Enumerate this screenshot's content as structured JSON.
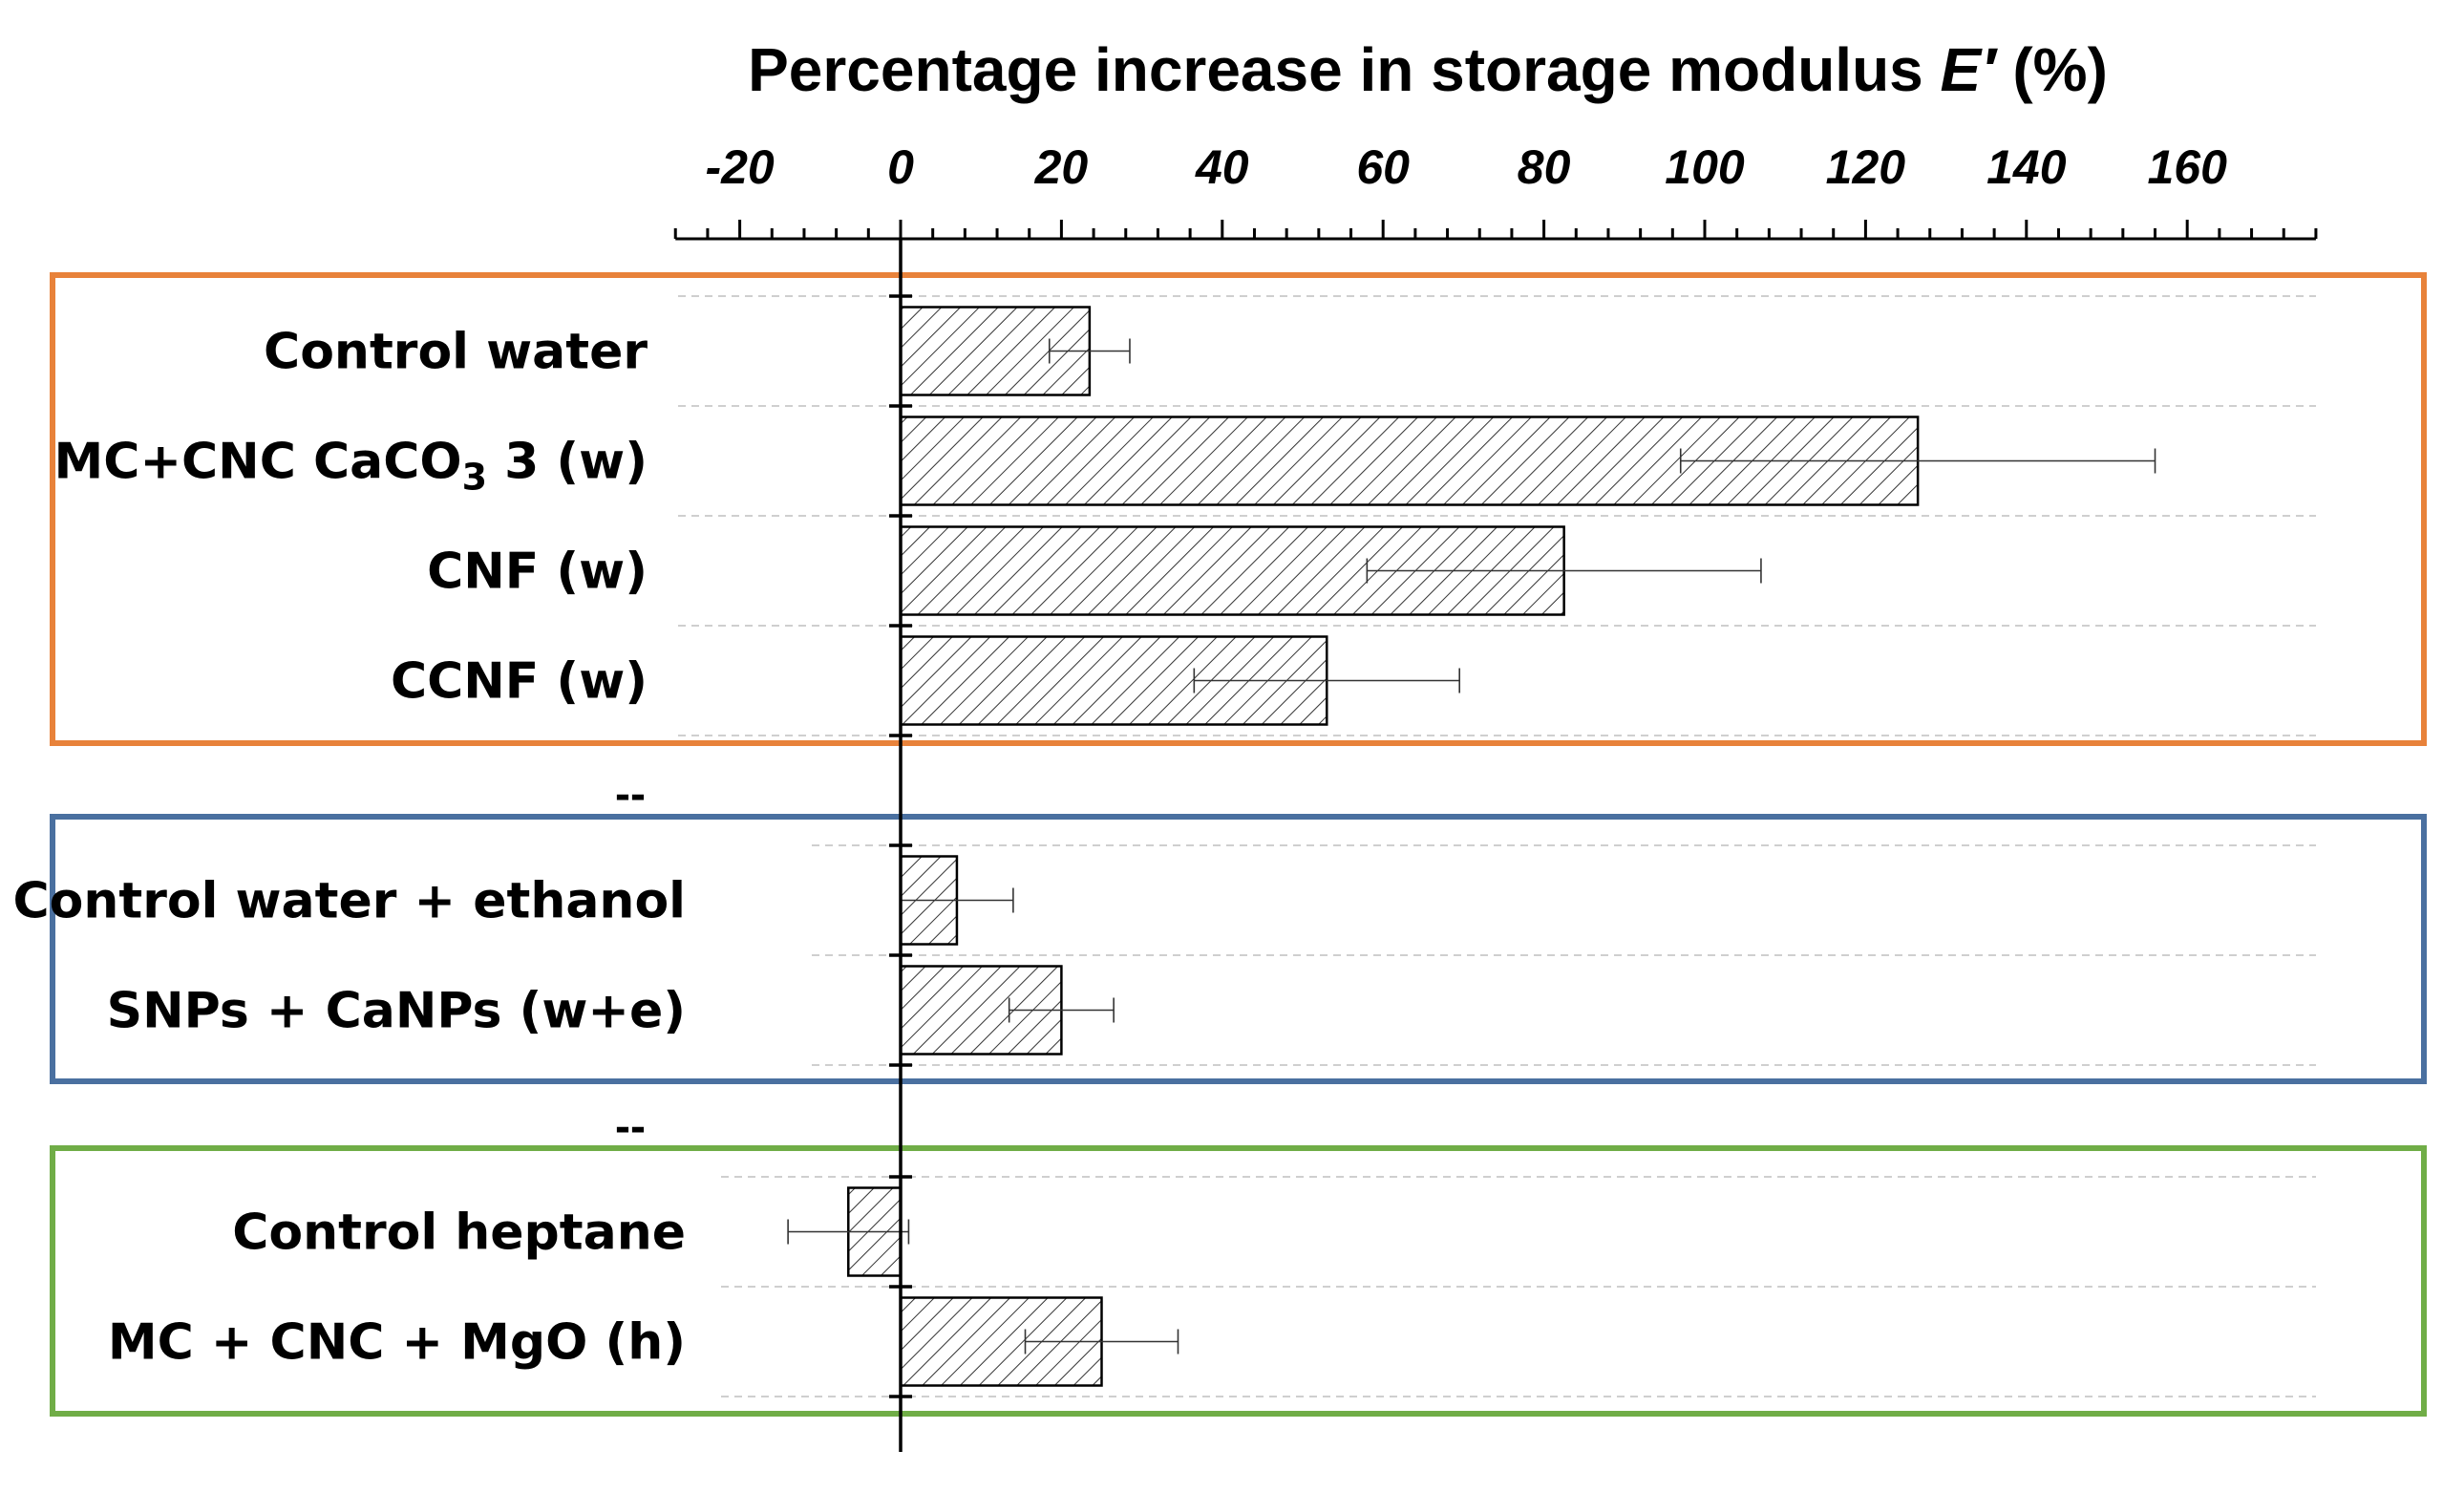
{
  "chart_data": {
    "type": "bar",
    "orientation": "horizontal",
    "title": "Percentage increase in storage modulus",
    "title_symbol": "E′",
    "title_unit": "(%)",
    "x_ticks": [
      "-20",
      "0",
      "20",
      "40",
      "60",
      "80",
      "100",
      "120",
      "140",
      "160"
    ],
    "xlim": [
      -28,
      176
    ],
    "separator_label": "--",
    "groups": [
      {
        "box_color": "#e8823a",
        "categories": [
          {
            "label": "Control water",
            "value": 23.5,
            "error": 5
          },
          {
            "label": "MC+CNC CaCO",
            "sub": "3",
            "suffix": " 3 (w)",
            "value": 126.5,
            "error": 29.5
          },
          {
            "label": "CNF (w)",
            "value": 82.5,
            "error": 24.5
          },
          {
            "label": "CCNF (w)",
            "value": 53,
            "error": 16.5
          }
        ]
      },
      {
        "box_color": "#4a70a0",
        "categories": [
          {
            "label": "Control water + ethanol",
            "value": 7,
            "error": 7
          },
          {
            "label": "SNPs + CaNPs (w+e)",
            "value": 20,
            "error": 6.5
          }
        ]
      },
      {
        "box_color": "#70ad47",
        "categories": [
          {
            "label": "Control heptane",
            "value": -6.5,
            "error": 7.5
          },
          {
            "label": "MC + CNC + MgO (h)",
            "value": 25,
            "error": 9.5
          }
        ]
      }
    ],
    "hatch": "diagonal",
    "grid": "dashed horizontal"
  }
}
